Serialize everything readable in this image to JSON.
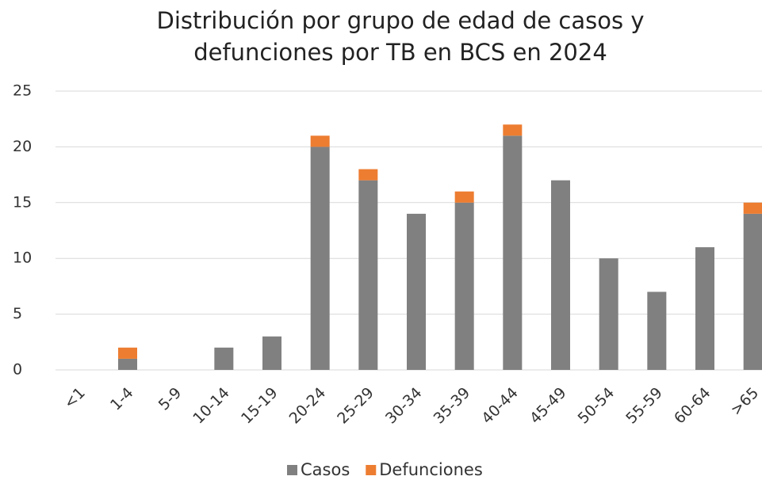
{
  "chart_data": {
    "type": "stacked_bar",
    "title": "Distribución por grupo de edad de casos y defunciones por TB en BCS en 2024",
    "categories": [
      "<1",
      "1-4",
      "5-9",
      "10-14",
      "15-19",
      "20-24",
      "25-29",
      "30-34",
      "35-39",
      "40-44",
      "45-49",
      "50-54",
      "55-59",
      "60-64",
      ">65"
    ],
    "series": [
      {
        "name": "Casos",
        "color": "#808080",
        "values": [
          0,
          1,
          0,
          2,
          3,
          20,
          17,
          14,
          15,
          21,
          17,
          10,
          7,
          11,
          14
        ]
      },
      {
        "name": "Defunciones",
        "color": "#ed7d31",
        "values": [
          0,
          1,
          0,
          0,
          0,
          1,
          1,
          0,
          1,
          1,
          0,
          0,
          0,
          0,
          1
        ]
      }
    ],
    "ylim": [
      0,
      25
    ],
    "yticks": [
      0,
      5,
      10,
      15,
      20,
      25
    ],
    "grid": true,
    "legend": "bottom"
  }
}
